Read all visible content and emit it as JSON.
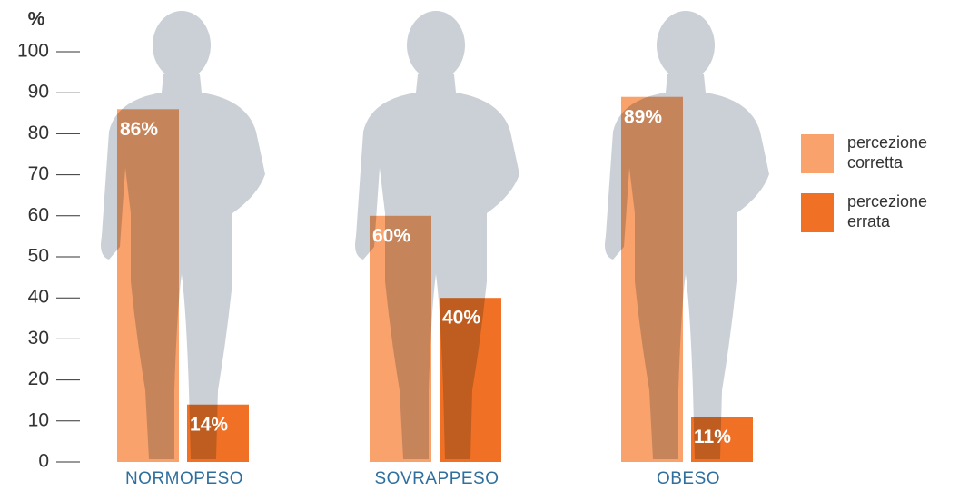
{
  "chart_data": {
    "type": "bar",
    "y_axis_label": "%",
    "categories": [
      "NORMOPESO",
      "SOVRAPPESO",
      "OBESO"
    ],
    "series": [
      {
        "name": "percezione corretta",
        "color": "#f9a26c",
        "values": [
          86,
          60,
          89
        ],
        "value_labels": [
          "86%",
          "60%",
          "89%"
        ]
      },
      {
        "name": "percezione errata",
        "color": "#f07125",
        "values": [
          14,
          40,
          11
        ],
        "value_labels": [
          "14%",
          "40%",
          "11%"
        ]
      }
    ],
    "ylim": [
      0,
      100
    ],
    "yticks": [
      0,
      10,
      20,
      30,
      40,
      50,
      60,
      70,
      80,
      90,
      100
    ]
  }
}
